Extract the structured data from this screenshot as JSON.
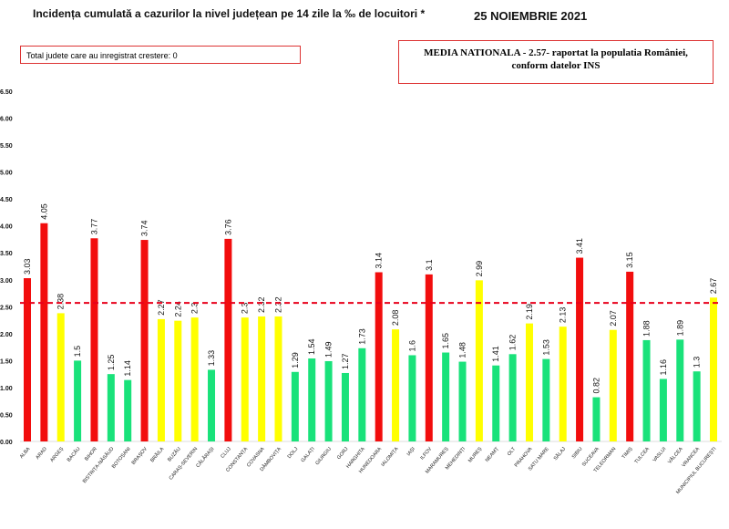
{
  "header": {
    "title": "Incidența cumulată a cazurilor la nivel județean pe 14 zile la ‰ de locuitori *",
    "date": "25 NOIEMBRIE 2021"
  },
  "notes": {
    "increase_count": "Total judete care au inregistrat crestere: 0",
    "national_line1": "MEDIA NATIONALA - 2.57-  raportat la populatia României,",
    "national_line2": "conform datelor INS"
  },
  "chart_data": {
    "type": "bar",
    "ylim": [
      0,
      6.5
    ],
    "yticks": [
      "0.00",
      "0.50",
      "1.00",
      "1.50",
      "2.00",
      "2.50",
      "3.00",
      "3.50",
      "4.00",
      "4.50",
      "5.00",
      "5.50",
      "6.00",
      "6.50"
    ],
    "reference_line": {
      "value": 2.57,
      "color": "#e8001c",
      "style": "dashed"
    },
    "colors": {
      "red": "#f20d0d",
      "yellow": "#ffff00",
      "green": "#19e27a"
    },
    "categories": [
      "ALBA",
      "ARAD",
      "ARGEȘ",
      "BACĂU",
      "BIHOR",
      "BISTRIȚA-NĂSĂUD",
      "BOTOȘANI",
      "BRAȘOV",
      "BRĂILA",
      "BUZĂU",
      "CARAȘ-SEVERIN",
      "CĂLĂRAȘI",
      "CLUJ",
      "CONSTANȚA",
      "COVASNA",
      "DÂMBOVIȚA",
      "DOLJ",
      "GALAȚI",
      "GIURGIU",
      "GORJ",
      "HARGHITA",
      "HUNEDOARA",
      "IALOMIȚA",
      "IAȘI",
      "ILFOV",
      "MARAMUREȘ",
      "MEHEDINȚI",
      "MUREȘ",
      "NEAMȚ",
      "OLT",
      "PRAHOVA",
      "SATU MARE",
      "SĂLAJ",
      "SIBIU",
      "SUCEAVA",
      "TELEORMAN",
      "TIMIȘ",
      "TULCEA",
      "VASLUI",
      "VÂLCEA",
      "VRANCEA",
      "MUNICIPIUL BUCUREȘTI"
    ],
    "values": [
      3.03,
      4.05,
      2.38,
      1.5,
      3.77,
      1.25,
      1.14,
      3.74,
      2.27,
      2.24,
      2.3,
      1.33,
      3.76,
      2.3,
      2.32,
      2.32,
      1.29,
      1.54,
      1.49,
      1.27,
      1.73,
      3.14,
      2.08,
      1.6,
      3.1,
      1.65,
      1.48,
      2.99,
      1.41,
      1.62,
      2.19,
      1.53,
      2.13,
      3.41,
      0.82,
      2.07,
      3.15,
      1.88,
      1.16,
      1.89,
      1.3,
      2.67
    ],
    "bar_colors": [
      "red",
      "red",
      "yellow",
      "green",
      "red",
      "green",
      "green",
      "red",
      "yellow",
      "yellow",
      "yellow",
      "green",
      "red",
      "yellow",
      "yellow",
      "yellow",
      "green",
      "green",
      "green",
      "green",
      "green",
      "red",
      "yellow",
      "green",
      "red",
      "green",
      "green",
      "yellow",
      "green",
      "green",
      "yellow",
      "green",
      "yellow",
      "red",
      "green",
      "yellow",
      "red",
      "green",
      "green",
      "green",
      "green",
      "yellow"
    ]
  }
}
